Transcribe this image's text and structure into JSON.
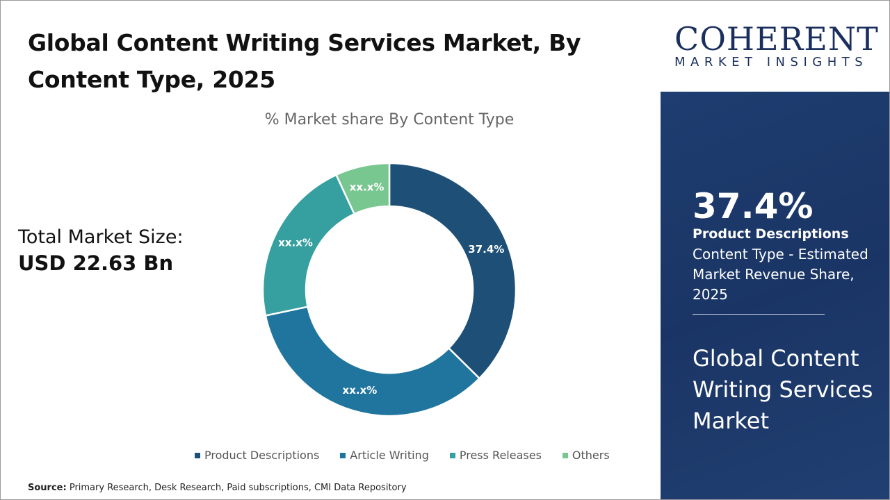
{
  "title": "Global Content Writing Services Market, By Content Type, 2025",
  "total_market": {
    "label": "Total Market Size:",
    "value": "USD 22.63 Bn"
  },
  "source": {
    "label": "Source:",
    "text": "Primary Research, Desk Research, Paid subscriptions, CMI Data Repository"
  },
  "logo": {
    "line1": "COHERENT",
    "line2": "MARKET INSIGHTS"
  },
  "panel": {
    "percent": "37.4%",
    "segment": "Product Descriptions",
    "description": "Content Type - Estimated Market Revenue Share, 2025",
    "market_name": "Global Content Writing Services Market"
  },
  "chart_data": {
    "type": "pie",
    "subtype": "donut",
    "title": "% Market share By Content Type",
    "categories": [
      "Product Descriptions",
      "Article Writing",
      "Press Releases",
      "Others"
    ],
    "values": [
      37.4,
      34.3,
      21.4,
      6.9
    ],
    "data_labels": [
      "37.4%",
      "xx.x%",
      "xx.x%",
      "xx.x%"
    ],
    "colors": [
      "#1d4f77",
      "#20759e",
      "#35a09f",
      "#78c690"
    ],
    "legend_position": "bottom"
  }
}
